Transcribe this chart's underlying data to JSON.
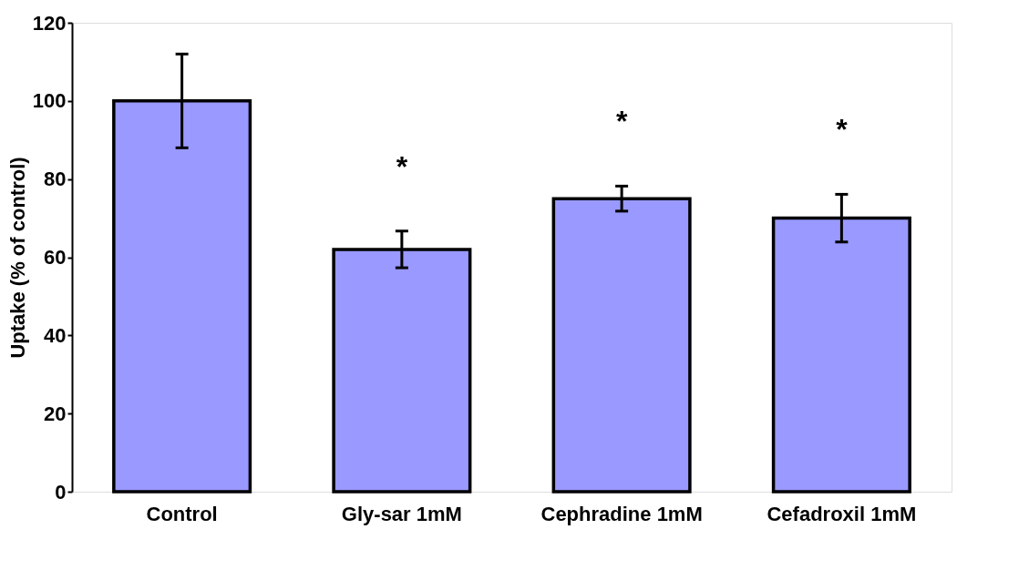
{
  "chart_data": {
    "type": "bar",
    "ylabel": "Uptake (% of control)",
    "categories": [
      "Control",
      "Gly-sar 1mM",
      "Cephradine 1mM",
      "Cefadroxil 1mM"
    ],
    "values": [
      100,
      62,
      75,
      70
    ],
    "errors": [
      12,
      4.7,
      3.2,
      6.1
    ],
    "color": "#9999ff",
    "ylim": [
      0,
      120
    ],
    "yticks": [
      0,
      20,
      40,
      60,
      80,
      100,
      120
    ],
    "grid": false,
    "value_labels": [
      null,
      "*",
      "*",
      "*"
    ]
  }
}
